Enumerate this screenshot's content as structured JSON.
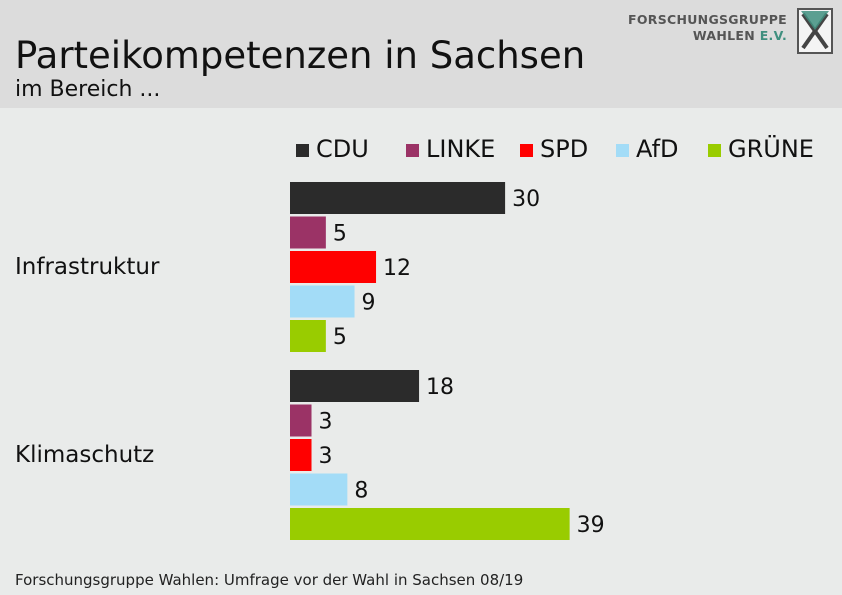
{
  "header": {
    "title": "Parteikompetenzen in Sachsen",
    "subtitle": "im Bereich ..."
  },
  "logo": {
    "line1": "FORSCHUNGSGRUPPE",
    "line2": "WAHLEN",
    "line2_suffix": "E.V."
  },
  "chart_data": {
    "type": "bar",
    "orientation": "horizontal",
    "title": "Parteikompetenzen in Sachsen",
    "subtitle": "im Bereich ...",
    "categories": [
      "Infrastruktur",
      "Klimaschutz"
    ],
    "series": [
      {
        "name": "CDU",
        "color": "#2b2b2b",
        "values": [
          30,
          18
        ]
      },
      {
        "name": "LINKE",
        "color": "#9b3366",
        "values": [
          5,
          3
        ]
      },
      {
        "name": "SPD",
        "color": "#ff0000",
        "values": [
          12,
          3
        ]
      },
      {
        "name": "AfD",
        "color": "#a3dcf7",
        "values": [
          9,
          8
        ]
      },
      {
        "name": "GRÜNE",
        "color": "#99cc00",
        "values": [
          5,
          39
        ]
      }
    ],
    "legend_position": "top",
    "data_labels": true,
    "grid": false
  },
  "footer": {
    "source": "Forschungsgruppe Wahlen: Umfrage vor der Wahl in Sachsen 08/19"
  }
}
